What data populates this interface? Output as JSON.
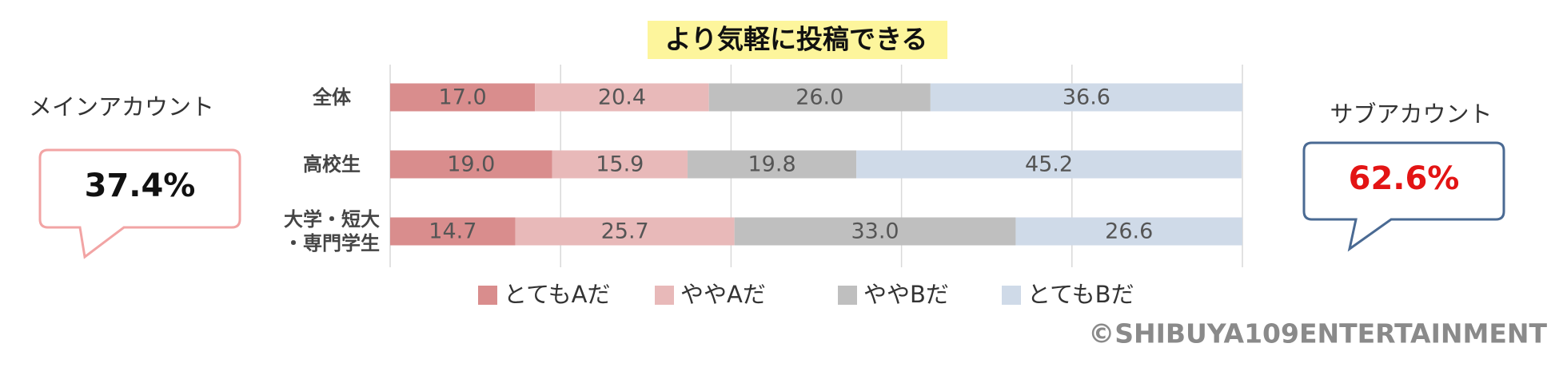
{
  "chart_data": {
    "type": "stacked-bar-horizontal",
    "title": "より気軽に投稿できる",
    "categories": [
      "全体",
      "高校生",
      "大学・短大\n・専門学生"
    ],
    "series": [
      {
        "name": "とてもAだ",
        "color": "#d98d8d",
        "values": [
          17.0,
          19.0,
          14.7
        ],
        "value_labels": [
          "17.0",
          "19.0",
          "14.7"
        ]
      },
      {
        "name": "ややAだ",
        "color": "#e8b9b9",
        "values": [
          20.4,
          15.9,
          25.7
        ],
        "value_labels": [
          "20.4",
          "15.9",
          "25.7"
        ]
      },
      {
        "name": "ややBだ",
        "color": "#bfbfbf",
        "values": [
          26.0,
          19.8,
          33.0
        ],
        "value_labels": [
          "26.0",
          "19.8",
          "33.0"
        ]
      },
      {
        "name": "とてもBだ",
        "color": "#cfdae8",
        "values": [
          36.6,
          45.2,
          26.6
        ],
        "value_labels": [
          "36.6",
          "45.2",
          "26.6"
        ]
      }
    ],
    "xlim": [
      0,
      100
    ],
    "xticks": [
      0,
      20,
      40,
      60,
      80,
      100
    ],
    "grid": true,
    "legend": "bottom"
  },
  "callouts": [
    {
      "heading": "メインアカウント",
      "value": "37.4%"
    },
    {
      "heading": "サブアカウント",
      "value": "62.6%"
    }
  ],
  "copyright": "©SHIBUYA109ENTERTAINMENT"
}
